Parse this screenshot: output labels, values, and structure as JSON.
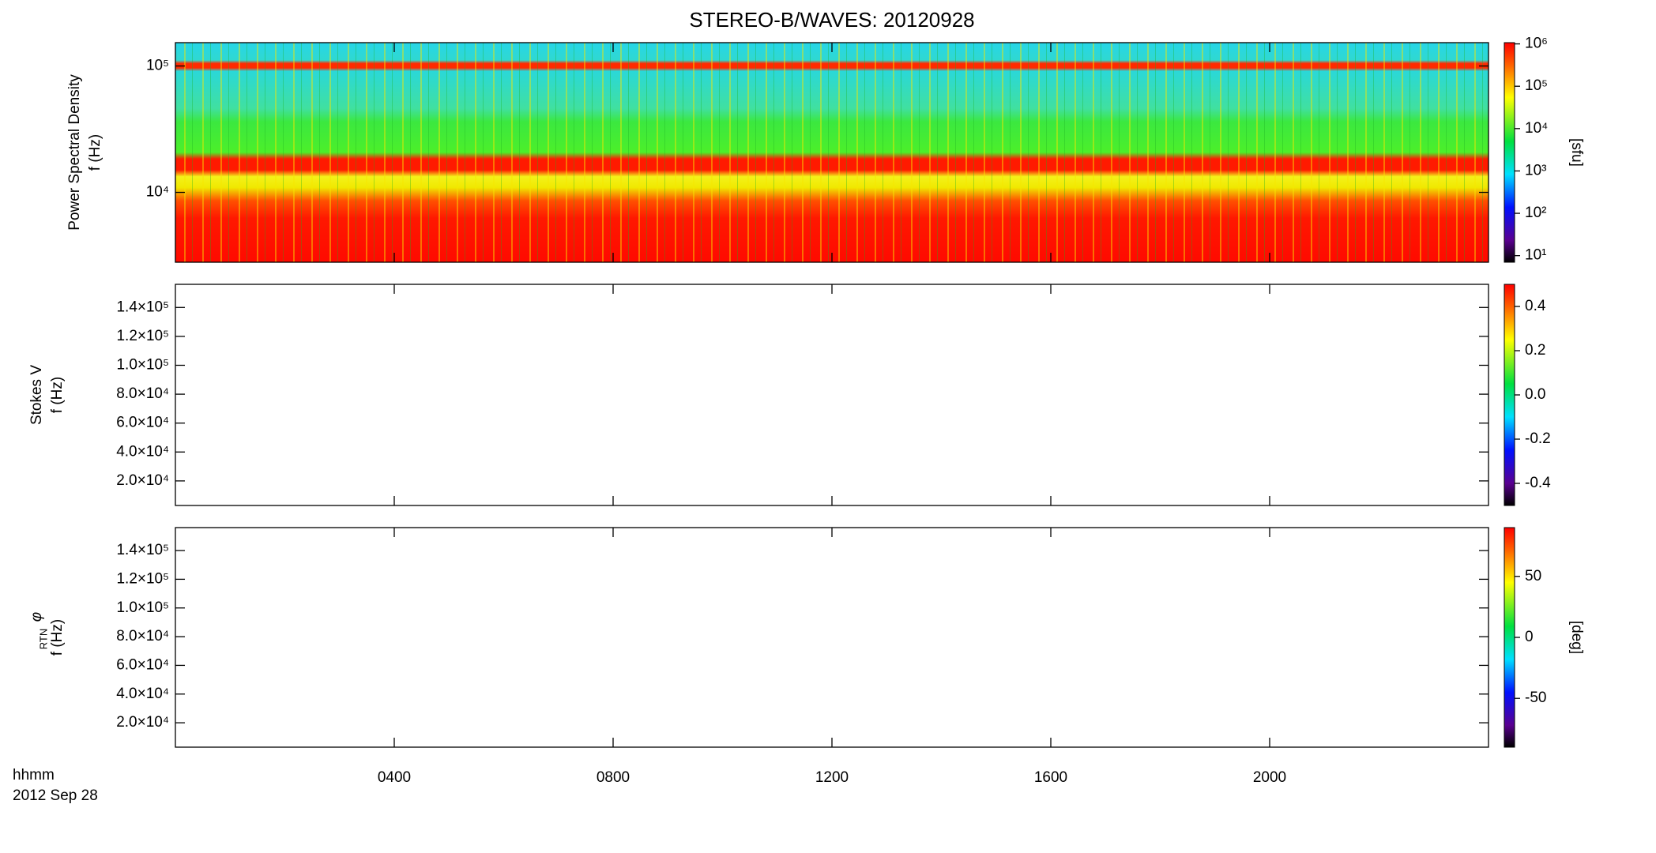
{
  "chart_data": [
    {
      "type": "heatmap",
      "title": "STEREO-B/WAVES: 20120928",
      "ylabel": [
        "Power Spectral Density",
        "f (Hz)"
      ],
      "log_y": true,
      "ylim": [
        2800,
        153000
      ],
      "yticks": [
        {
          "value": 10000,
          "label": "10⁴"
        },
        {
          "value": 100000,
          "label": "10⁵"
        }
      ],
      "colorbar": {
        "log": true,
        "lim": [
          7,
          1070000
        ],
        "label": "[sfu]",
        "ticks": [
          {
            "value": 10,
            "label": "10¹"
          },
          {
            "value": 100,
            "label": "10²"
          },
          {
            "value": 1000,
            "label": "10³"
          },
          {
            "value": 10000,
            "label": "10⁴"
          },
          {
            "value": 100000,
            "label": "10⁵"
          },
          {
            "value": 1000000,
            "label": "10⁶"
          }
        ]
      }
    },
    {
      "type": "heatmap",
      "ylabel": [
        "Stokes V",
        "f (Hz)"
      ],
      "log_y": false,
      "ylim": [
        3000,
        156000
      ],
      "yticks": [
        {
          "value": 20000,
          "label": "2.0×10⁴"
        },
        {
          "value": 40000,
          "label": "4.0×10⁴"
        },
        {
          "value": 60000,
          "label": "6.0×10⁴"
        },
        {
          "value": 80000,
          "label": "8.0×10⁴"
        },
        {
          "value": 100000,
          "label": "1.0×10⁵"
        },
        {
          "value": 120000,
          "label": "1.2×10⁵"
        },
        {
          "value": 140000,
          "label": "1.4×10⁵"
        }
      ],
      "colorbar": {
        "log": false,
        "lim": [
          -0.5,
          0.5
        ],
        "ticks": [
          {
            "value": -0.4,
            "label": "-0.4"
          },
          {
            "value": -0.2,
            "label": "-0.2"
          },
          {
            "value": 0,
            "label": "0.0"
          },
          {
            "value": 0.2,
            "label": "0.2"
          },
          {
            "value": 0.4,
            "label": "0.4"
          }
        ]
      }
    },
    {
      "type": "heatmap",
      "symbol": "φ",
      "symbol_subscript": "RTN",
      "ylabel": [
        "f (Hz)"
      ],
      "log_y": false,
      "ylim": [
        3000,
        156000
      ],
      "yticks": [
        {
          "value": 20000,
          "label": "2.0×10⁴"
        },
        {
          "value": 40000,
          "label": "4.0×10⁴"
        },
        {
          "value": 60000,
          "label": "6.0×10⁴"
        },
        {
          "value": 80000,
          "label": "8.0×10⁴"
        },
        {
          "value": 100000,
          "label": "1.0×10⁵"
        },
        {
          "value": 120000,
          "label": "1.2×10⁵"
        },
        {
          "value": 140000,
          "label": "1.4×10⁵"
        }
      ],
      "colorbar": {
        "log": false,
        "lim": [
          -90,
          90
        ],
        "label": "[deg]",
        "ticks": [
          -50,
          0,
          50
        ]
      },
      "xlabel": "hhmm",
      "date": "2012 Sep 28",
      "xlim": [
        0,
        24
      ],
      "xticks": [
        {
          "value": 4,
          "label": "0400"
        },
        {
          "value": 8,
          "label": "0800"
        },
        {
          "value": 12,
          "label": "1200"
        },
        {
          "value": 16,
          "label": "1600"
        },
        {
          "value": 20,
          "label": "2000"
        }
      ]
    }
  ]
}
